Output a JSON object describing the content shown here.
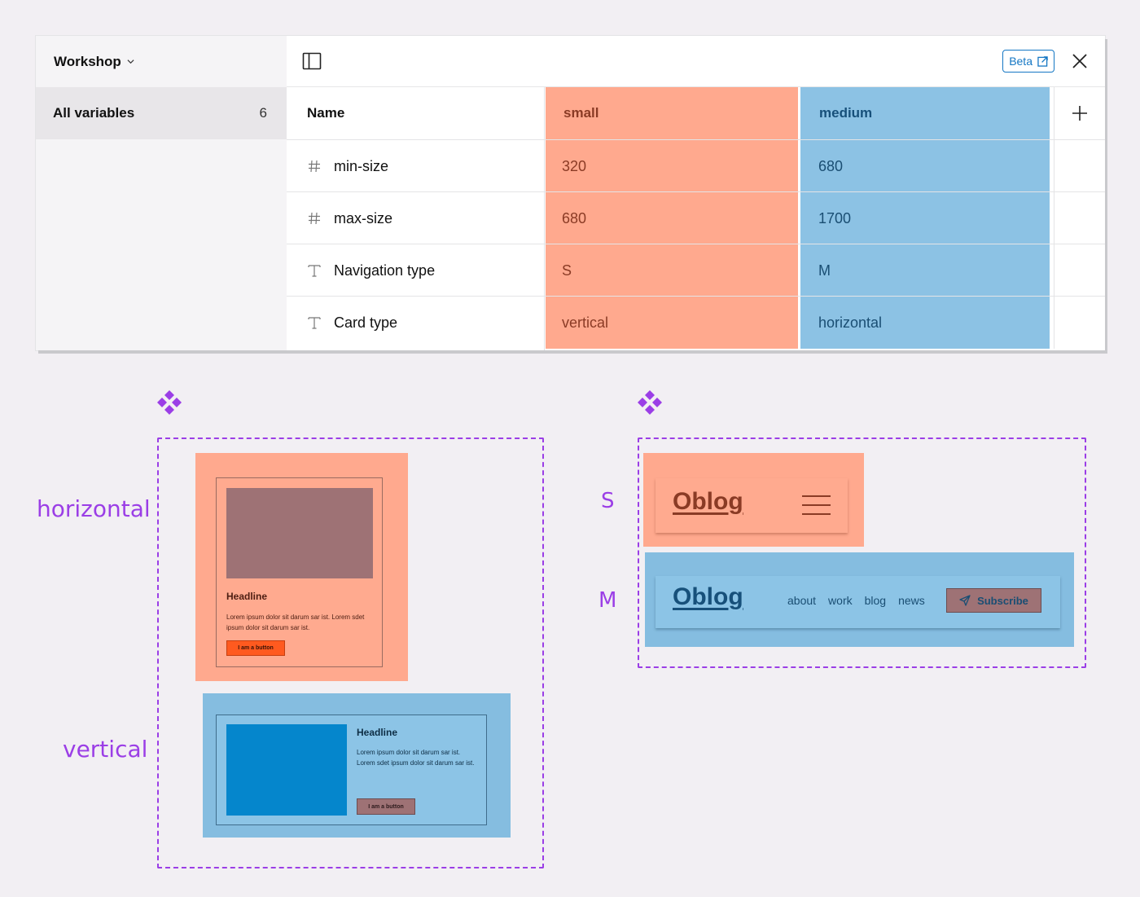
{
  "sidebar": {
    "workspace": "Workshop",
    "item": {
      "label": "All variables",
      "count": "6"
    }
  },
  "toolbar": {
    "beta_label": "Beta"
  },
  "table": {
    "header": {
      "name": "Name",
      "modes": [
        "small",
        "medium"
      ]
    },
    "rows": [
      {
        "type": "number",
        "name": "min-size",
        "small": "320",
        "medium": "680"
      },
      {
        "type": "number",
        "name": "max-size",
        "small": "680",
        "medium": "1700"
      },
      {
        "type": "string",
        "name": "Navigation type",
        "small": "S",
        "medium": "M"
      },
      {
        "type": "string",
        "name": "Card type",
        "small": "vertical",
        "medium": "horizontal"
      }
    ]
  },
  "illustration": {
    "card_labels": {
      "horizontal": "horizontal",
      "vertical": "vertical"
    },
    "nav_labels": {
      "s": "S",
      "m": "M"
    },
    "card": {
      "headline": "Headline",
      "body_h": "Lorem ipsum dolor sit darum sar ist. Lorem sdet ipsum dolor sit darum sar ist.",
      "body_v": "Lorem ipsum dolor sit darum sar ist. Lorem sdet ipsum dolor sit darum sar ist.",
      "button": "I am a button"
    },
    "nav": {
      "logo": "Oblog",
      "links": [
        "about",
        "work",
        "blog",
        "news"
      ],
      "subscribe": "Subscribe"
    }
  },
  "colors": {
    "small": "#ffa98e",
    "medium": "#8cc2e4",
    "accent_purple": "#9b3ee6",
    "beta_blue": "#1577c4"
  }
}
